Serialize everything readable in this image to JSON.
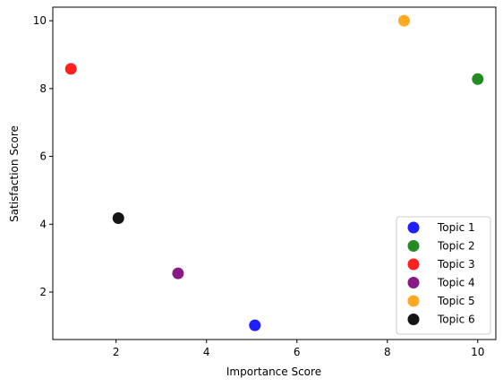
{
  "chart_data": {
    "type": "scatter",
    "title": "",
    "xlabel": "Importance Score",
    "ylabel": "Satisfaction Score",
    "xlim": [
      0.6,
      10.4
    ],
    "ylim": [
      0.6,
      10.4
    ],
    "xticks": [
      2,
      4,
      6,
      8,
      10
    ],
    "yticks": [
      2,
      4,
      6,
      8,
      10
    ],
    "grid": false,
    "legend_position": "lower-right",
    "series": [
      {
        "name": "Topic 1",
        "color": "#1f1fff",
        "x": [
          5.07
        ],
        "y": [
          1.02
        ]
      },
      {
        "name": "Topic 2",
        "color": "#228b22",
        "x": [
          10.0
        ],
        "y": [
          8.28
        ]
      },
      {
        "name": "Topic 3",
        "color": "#ff2020",
        "x": [
          1.0
        ],
        "y": [
          8.58
        ]
      },
      {
        "name": "Topic 4",
        "color": "#881a88",
        "x": [
          3.37
        ],
        "y": [
          2.55
        ]
      },
      {
        "name": "Topic 5",
        "color": "#ffaa22",
        "x": [
          8.37
        ],
        "y": [
          10.0
        ]
      },
      {
        "name": "Topic 6",
        "color": "#151515",
        "x": [
          2.05
        ],
        "y": [
          4.18
        ]
      }
    ]
  }
}
